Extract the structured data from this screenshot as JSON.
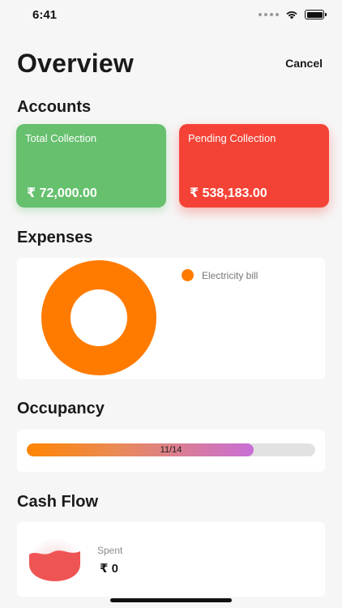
{
  "status_bar": {
    "time": "6:41"
  },
  "header": {
    "title": "Overview",
    "cancel_label": "Cancel"
  },
  "accounts": {
    "title": "Accounts",
    "cards": [
      {
        "label": "Total Collection",
        "value": "₹ 72,000.00",
        "color": "#66c06e"
      },
      {
        "label": "Pending Collection",
        "value": "₹ 538,183.00",
        "color": "#f44336"
      }
    ]
  },
  "expenses": {
    "title": "Expenses",
    "chart_data": {
      "type": "pie",
      "labels": [
        "Electricity bill"
      ],
      "values": [
        100
      ],
      "colors": [
        "#ff7b00"
      ],
      "legend_position": "top-right"
    }
  },
  "occupancy": {
    "title": "Occupancy",
    "label": "11/14",
    "occupied": 11,
    "total": 14
  },
  "cash_flow": {
    "title": "Cash Flow",
    "spent_label": "Spent",
    "spent_value": "₹ 0"
  }
}
